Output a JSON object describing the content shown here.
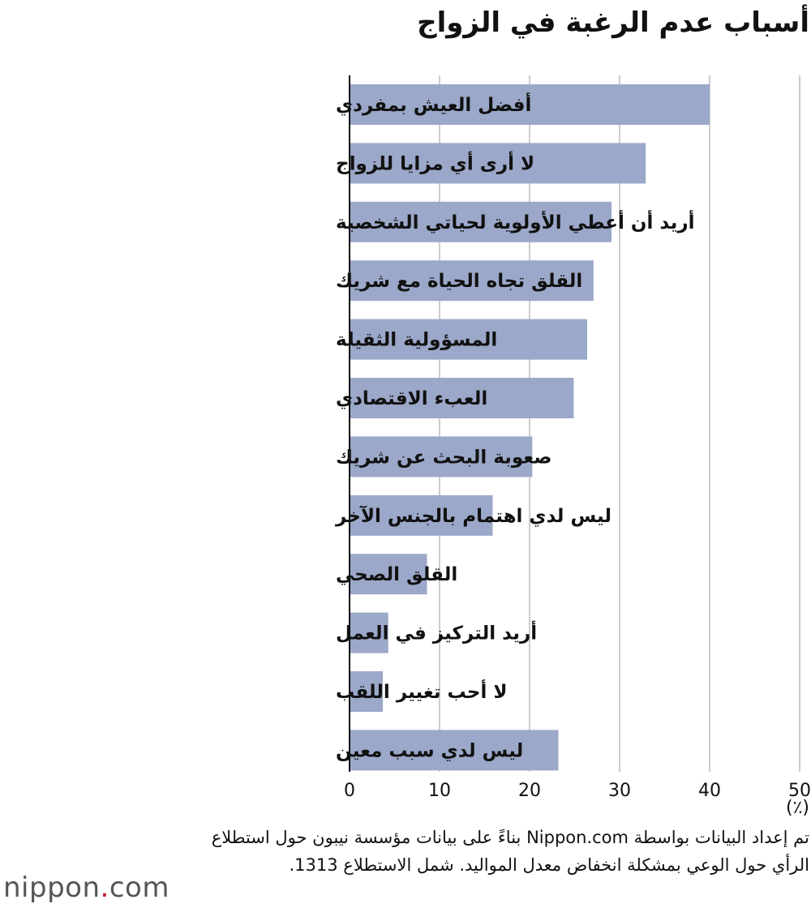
{
  "chart_data": {
    "type": "bar",
    "orientation": "horizontal",
    "title": "أسباب عدم الرغبة في الزواج",
    "unit": "(٪)",
    "categories": [
      "أفضل العيش بمفردي",
      "لا أرى أي مزايا للزواج",
      "أريد أن أعطي الأولوية لحياتي الشخصية",
      "القلق تجاه الحياة مع شريك",
      "المسؤولية الثقيلة",
      "العبء الاقتصادي",
      "صعوبة البحث عن شريك",
      "ليس لدي اهتمام بالجنس الآخر",
      "القلق الصحي",
      "أريد التركيز في العمل",
      "لا أحب تغيير اللقب",
      "ليس لدي سبب معين"
    ],
    "values": [
      40.0,
      32.9,
      29.1,
      27.1,
      26.4,
      24.9,
      20.3,
      15.9,
      8.6,
      4.3,
      3.7,
      23.2
    ],
    "xlim": [
      0,
      50
    ],
    "xticks": [
      0,
      10,
      20,
      30,
      40,
      50
    ],
    "grid": true,
    "bar_color": "#9ba8c9",
    "grid_color": "#cccccc"
  },
  "source_text": "تم إعداد البيانات بواسطة Nippon.com بناءً على بيانات مؤسسة نيبون حول استطلاع الرأي حول الوعي بمشكلة انخفاض معدل المواليد. شمل الاستطلاع 1313.",
  "logo": {
    "name": "nippon",
    "dot": ".",
    "suffix": "com"
  }
}
